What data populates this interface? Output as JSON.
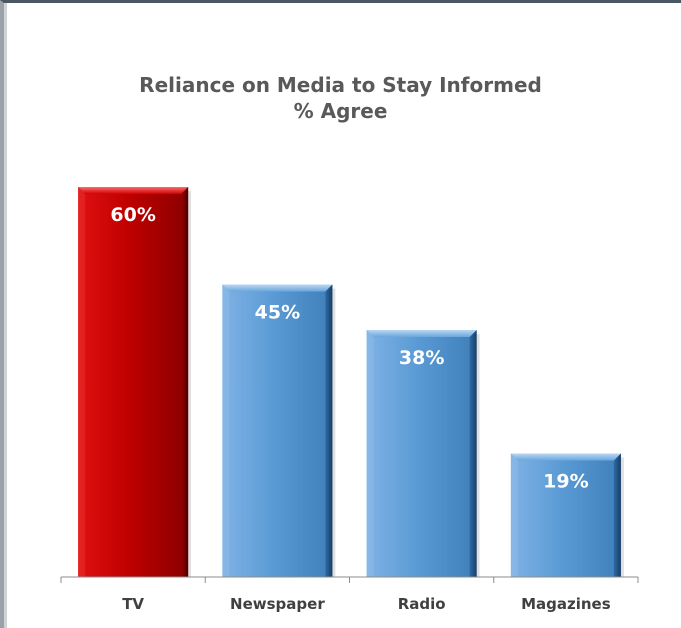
{
  "chart_data": {
    "type": "bar",
    "title": "Reliance on Media to Stay Informed",
    "subtitle": "% Agree",
    "categories": [
      "TV",
      "Newspaper",
      "Radio",
      "Magazines"
    ],
    "values": [
      60,
      45,
      38,
      19
    ],
    "data_labels": [
      "60%",
      "45%",
      "38%",
      "19%"
    ],
    "unit": "%",
    "ylim": [
      0,
      60
    ],
    "grid": false,
    "legend": "none",
    "colors": {
      "highlight": "#c00000",
      "highlight_dark": "#7a0000",
      "default": "#5b9bd5",
      "default_dark": "#1f4e79",
      "label_text": "#ffffff",
      "axis_text": "#404040",
      "title_text": "#595959"
    },
    "highlight_index": 0
  }
}
